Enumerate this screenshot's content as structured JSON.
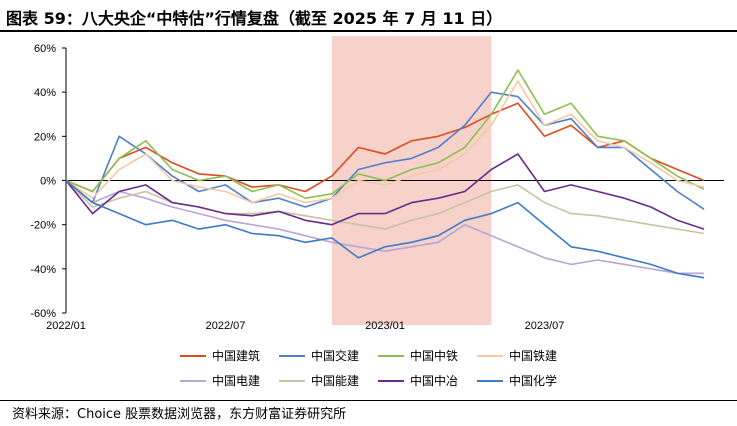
{
  "title": "图表 59：八大央企“中特估”行情复盘（截至 2025 年 7 月 11 日）",
  "source": "资料来源：Choice 股票数据浏览器，东方财富证券研究所",
  "chart_data": {
    "type": "line",
    "x": [
      "2022/01",
      "2022/02",
      "2022/03",
      "2022/04",
      "2022/05",
      "2022/06",
      "2022/07",
      "2022/08",
      "2022/09",
      "2022/10",
      "2022/11",
      "2022/12",
      "2023/01",
      "2023/02",
      "2023/03",
      "2023/04",
      "2023/05",
      "2023/06",
      "2023/07",
      "2023/08",
      "2023/09",
      "2023/10",
      "2023/11",
      "2023/12",
      "2024/01"
    ],
    "xticks": [
      "2022/01",
      "2022/07",
      "2023/01",
      "2023/07"
    ],
    "yticks": [
      "60%",
      "40%",
      "20%",
      "0%",
      "-20%",
      "-40%",
      "-60%"
    ],
    "ylim": [
      -60,
      60
    ],
    "shaded_region": {
      "from": "2022/11",
      "to": "2023/05",
      "color": "#f4c7bd"
    },
    "series": [
      {
        "name": "中国建筑",
        "color": "#e04b1f",
        "values": [
          0,
          -5,
          10,
          15,
          8,
          3,
          2,
          -3,
          -2,
          -5,
          2,
          15,
          12,
          18,
          20,
          24,
          30,
          35,
          20,
          25,
          15,
          18,
          10,
          5,
          0
        ]
      },
      {
        "name": "中国交建",
        "color": "#4f7fcf",
        "values": [
          0,
          -10,
          20,
          12,
          2,
          -5,
          -2,
          -10,
          -8,
          -12,
          -8,
          5,
          8,
          10,
          15,
          25,
          40,
          38,
          25,
          28,
          15,
          15,
          5,
          -5,
          -13
        ]
      },
      {
        "name": "中国中铁",
        "color": "#8fbf4f",
        "values": [
          0,
          -5,
          10,
          18,
          5,
          0,
          2,
          -5,
          -2,
          -8,
          -6,
          3,
          0,
          5,
          8,
          15,
          30,
          50,
          30,
          35,
          20,
          18,
          10,
          2,
          -4
        ]
      },
      {
        "name": "中国铁建",
        "color": "#f5c9a6",
        "values": [
          0,
          -8,
          5,
          12,
          0,
          -3,
          -5,
          -10,
          -6,
          -10,
          -8,
          0,
          -2,
          2,
          5,
          12,
          25,
          45,
          25,
          30,
          18,
          15,
          8,
          0,
          -3
        ]
      },
      {
        "name": "中国电建",
        "color": "#b9a5d6",
        "values": [
          0,
          -10,
          -5,
          -8,
          -12,
          -15,
          -18,
          -20,
          -22,
          -25,
          -28,
          -30,
          -32,
          -30,
          -28,
          -20,
          -25,
          -30,
          -35,
          -38,
          -36,
          -38,
          -40,
          -42,
          -42
        ]
      },
      {
        "name": "中国能建",
        "color": "#c8c4a3",
        "values": [
          0,
          -12,
          -8,
          -5,
          -10,
          -12,
          -15,
          -15,
          -14,
          -16,
          -18,
          -20,
          -22,
          -18,
          -15,
          -10,
          -5,
          -2,
          -10,
          -15,
          -16,
          -18,
          -20,
          -22,
          -24
        ]
      },
      {
        "name": "中国中冶",
        "color": "#6a2b8c",
        "values": [
          0,
          -15,
          -5,
          -2,
          -10,
          -12,
          -15,
          -16,
          -14,
          -18,
          -20,
          -15,
          -15,
          -10,
          -8,
          -5,
          5,
          12,
          -5,
          -2,
          -5,
          -8,
          -12,
          -18,
          -22
        ]
      },
      {
        "name": "中国化学",
        "color": "#3f7ac8",
        "values": [
          0,
          -10,
          -15,
          -20,
          -18,
          -22,
          -20,
          -24,
          -25,
          -28,
          -26,
          -35,
          -30,
          -28,
          -25,
          -18,
          -15,
          -10,
          -20,
          -30,
          -32,
          -35,
          -38,
          -42,
          -44
        ]
      }
    ]
  }
}
